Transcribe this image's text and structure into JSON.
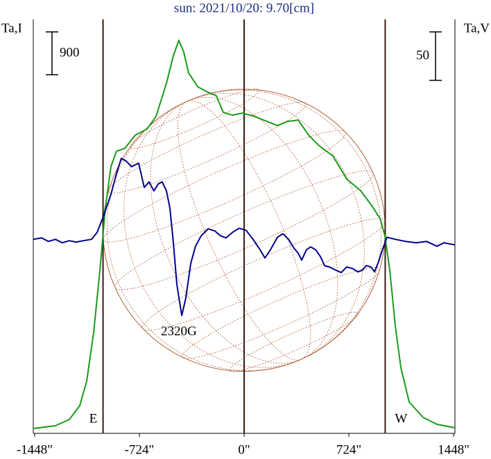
{
  "chart_data": {
    "type": "line",
    "title": "sun: 2021/10/20: 9.70[cm]",
    "y_label": "Ta,I",
    "y2_label": "Ta,V",
    "y_scale_bar": 900,
    "y2_scale_bar": 50,
    "annotation": "2320G",
    "limb_labels": [
      "E",
      "W"
    ],
    "limb": [
      -975,
      975
    ],
    "center_line": 0,
    "xlim": [
      -1457,
      1457
    ],
    "xticks": [
      {
        "value": -1448,
        "label": "-1448\""
      },
      {
        "value": -724,
        "label": "-724\""
      },
      {
        "value": 0,
        "label": "0\""
      },
      {
        "value": 724,
        "label": "724\""
      },
      {
        "value": 1448,
        "label": "1448\""
      }
    ],
    "ylim": [
      0,
      8700
    ],
    "y2lim": [
      -198,
      229
    ],
    "series": [
      {
        "color": "#1a9a1a",
        "x": [
          -1457,
          -1304,
          -1208,
          -1136,
          -1088,
          -1040,
          -992,
          -959,
          -920,
          -882,
          -825,
          -753,
          -671,
          -609,
          -537,
          -489,
          -451,
          -417,
          -384,
          -321,
          -249,
          -192,
          -144,
          -81,
          -10,
          62,
          158,
          230,
          302,
          374,
          446,
          518,
          614,
          709,
          805,
          877,
          940,
          973,
          1007,
          1045,
          1083,
          1141,
          1237,
          1333,
          1457
        ],
        "values": [
          102,
          160,
          291,
          583,
          1093,
          2113,
          3570,
          4735,
          5609,
          5930,
          5988,
          6265,
          6396,
          6658,
          7358,
          7941,
          8261,
          8014,
          7576,
          7285,
          7168,
          7096,
          6746,
          6688,
          6731,
          6672,
          6557,
          6469,
          6557,
          6586,
          6265,
          6047,
          5828,
          5347,
          5100,
          4808,
          4517,
          4153,
          3424,
          2258,
          1384,
          656,
          335,
          189,
          117
        ]
      },
      {
        "color": "#00008b",
        "axis": "y2",
        "x": [
          -1457,
          -1400,
          -1352,
          -1304,
          -1256,
          -1208,
          -1160,
          -1112,
          -1055,
          -1016,
          -969,
          -920,
          -882,
          -849,
          -815,
          -777,
          -729,
          -690,
          -657,
          -623,
          -594,
          -566,
          -537,
          -513,
          -489,
          -465,
          -431,
          -403,
          -369,
          -336,
          -297,
          -249,
          -201,
          -163,
          -125,
          -81,
          -34,
          14,
          62,
          110,
          144,
          182,
          230,
          268,
          307,
          345,
          374,
          398,
          431,
          460,
          494,
          527,
          556,
          590,
          638,
          671,
          709,
          748,
          786,
          815,
          844,
          877,
          901,
          930,
          959,
          988,
          1045,
          1117,
          1189,
          1261,
          1333,
          1381,
          1457
        ],
        "values": [
          2.1,
          3.6,
          0,
          2.1,
          -1.4,
          0.7,
          -0.7,
          0.7,
          2.1,
          9.3,
          27.1,
          48.6,
          70,
          85.7,
          82.8,
          77.1,
          80.7,
          55.7,
          61.4,
          52.1,
          59.3,
          61.4,
          52.1,
          34.3,
          -1.4,
          -44.3,
          -76.4,
          -58.6,
          -22.9,
          -5,
          5.7,
          12.9,
          10.7,
          5.7,
          3.6,
          9.3,
          13.6,
          11.4,
          2.1,
          -8.6,
          -17.1,
          -8.6,
          4.3,
          7.9,
          2.1,
          -7.1,
          -12.1,
          -19.3,
          -8.6,
          -5.7,
          -8.6,
          -15.7,
          -25,
          -26.4,
          -30,
          -32.1,
          -26.4,
          -27.9,
          -31.4,
          -30,
          -25,
          -26.4,
          -31.4,
          -20.7,
          -7.1,
          4.3,
          2.1,
          0,
          -1.4,
          0,
          -5,
          -1.4,
          -3.6
        ]
      }
    ]
  }
}
